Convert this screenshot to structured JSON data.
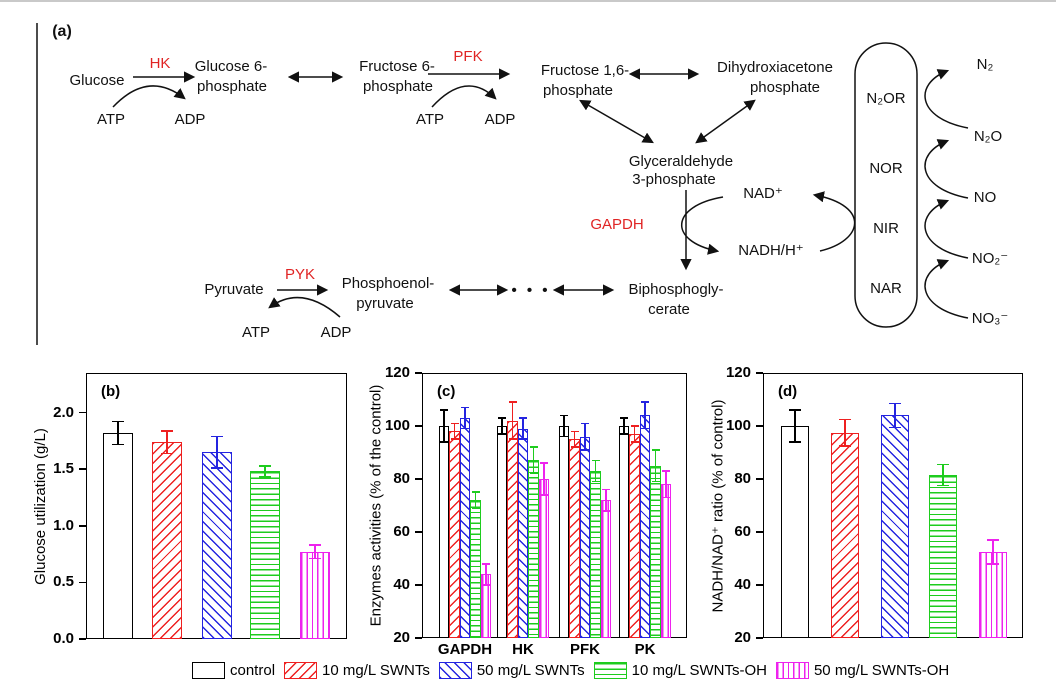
{
  "figure": {
    "background": "#ffffff",
    "top_border_color": "#c9c9c9"
  },
  "panel_a": {
    "panel_label": "(a)",
    "enzyme_color": "#e02424",
    "labels": {
      "glucose": "Glucose",
      "hk": "HK",
      "g6p_1": "Glucose 6-",
      "g6p_2": "phosphate",
      "f6p_1": "Fructose 6-",
      "f6p_2": "phosphate",
      "pfk": "PFK",
      "f16p_1": "Fructose 1,6-",
      "f16p_2": "phosphate",
      "dhap_1": "Dihydroxiacetone",
      "dhap_2": "phosphate",
      "atp": "ATP",
      "adp": "ADP",
      "gap_1": "Glyceraldehyde",
      "gap_2": "3-phosphate",
      "gapdh": "GAPDH",
      "nad": "NAD⁺",
      "nadh": "NADH/H⁺",
      "bpg_1": "Biphosphogly-",
      "bpg_2": "cerate",
      "pyruvate": "Pyruvate",
      "pyk": "PYK",
      "pep_1": "Phosphoenol-",
      "pep_2": "pyruvate",
      "dots": "• • •",
      "n2or": "N₂OR",
      "nor": "NOR",
      "nir": "NIR",
      "nar": "NAR",
      "n2": "N₂",
      "n2o": "N₂O",
      "no": "NO",
      "no2": "NO₂⁻",
      "no3": "NO₃⁻"
    }
  },
  "series_styles": [
    {
      "name": "control",
      "color": "#000000",
      "hatch": "none"
    },
    {
      "name": "10 mg/L SWNTs",
      "color": "#ee2020",
      "hatch": "fwd"
    },
    {
      "name": "50 mg/L SWNTs",
      "color": "#2424e0",
      "hatch": "back"
    },
    {
      "name": "10 mg/L SWNTs-OH",
      "color": "#1ecc1e",
      "hatch": "horiz"
    },
    {
      "name": "50 mg/L SWNTs-OH",
      "color": "#ee22ee",
      "hatch": "vert"
    }
  ],
  "chart_data": [
    {
      "id": "b",
      "type": "bar",
      "panel_label": "(b)",
      "ylabel": "Glucose utilization (g/L)",
      "ylim": [
        0,
        2.35
      ],
      "yticks": [
        {
          "v": 0.0,
          "label": "0.0"
        },
        {
          "v": 0.5,
          "label": "0.5"
        },
        {
          "v": 1.0,
          "label": "1.0"
        },
        {
          "v": 1.5,
          "label": "1.5"
        },
        {
          "v": 2.0,
          "label": "2.0"
        }
      ],
      "series_labels": [
        "control",
        "10 mg/L SWNTs",
        "50 mg/L SWNTs",
        "10 mg/L SWNTs-OH",
        "50 mg/L SWNTs-OH"
      ],
      "values": [
        1.82,
        1.74,
        1.65,
        1.48,
        0.77
      ],
      "errors": [
        0.1,
        0.1,
        0.14,
        0.05,
        0.06
      ]
    },
    {
      "id": "c",
      "type": "bar",
      "panel_label": "(c)",
      "ylabel": "Enzymes activities (% of the control)",
      "ylim": [
        20,
        120
      ],
      "yticks": [
        {
          "v": 20,
          "label": "20"
        },
        {
          "v": 40,
          "label": "40"
        },
        {
          "v": 60,
          "label": "60"
        },
        {
          "v": 80,
          "label": "80"
        },
        {
          "v": 100,
          "label": "100"
        },
        {
          "v": 120,
          "label": "120"
        }
      ],
      "categories": [
        "GAPDH",
        "HK",
        "PFK",
        "PK"
      ],
      "series": [
        {
          "name": "control",
          "values": [
            100,
            100,
            100,
            100
          ],
          "errors": [
            6,
            3,
            4,
            3
          ]
        },
        {
          "name": "10 mg/L SWNTs",
          "values": [
            98,
            102,
            95,
            97
          ],
          "errors": [
            3,
            7,
            3,
            3
          ]
        },
        {
          "name": "50 mg/L SWNTs",
          "values": [
            103,
            99,
            96,
            104
          ],
          "errors": [
            4,
            4,
            5,
            5
          ]
        },
        {
          "name": "10 mg/L SWNTs-OH",
          "values": [
            72,
            87,
            83,
            85
          ],
          "errors": [
            3,
            5,
            4,
            6
          ]
        },
        {
          "name": "50 mg/L SWNTs-OH",
          "values": [
            44,
            80,
            72,
            78
          ],
          "errors": [
            4,
            6,
            4,
            5
          ]
        }
      ]
    },
    {
      "id": "d",
      "type": "bar",
      "panel_label": "(d)",
      "ylabel": "NADH/NAD⁺ ratio (% of control)",
      "ylim": [
        20,
        120
      ],
      "yticks": [
        {
          "v": 20,
          "label": "20"
        },
        {
          "v": 40,
          "label": "40"
        },
        {
          "v": 60,
          "label": "60"
        },
        {
          "v": 80,
          "label": "80"
        },
        {
          "v": 100,
          "label": "100"
        },
        {
          "v": 120,
          "label": "120"
        }
      ],
      "series_labels": [
        "control",
        "10 mg/L SWNTs",
        "50 mg/L SWNTs",
        "10 mg/L SWNTs-OH",
        "50 mg/L SWNTs-OH"
      ],
      "values": [
        100,
        97.5,
        104,
        81.5,
        52.5
      ],
      "errors": [
        6,
        5,
        4.5,
        4,
        4.5
      ]
    }
  ]
}
